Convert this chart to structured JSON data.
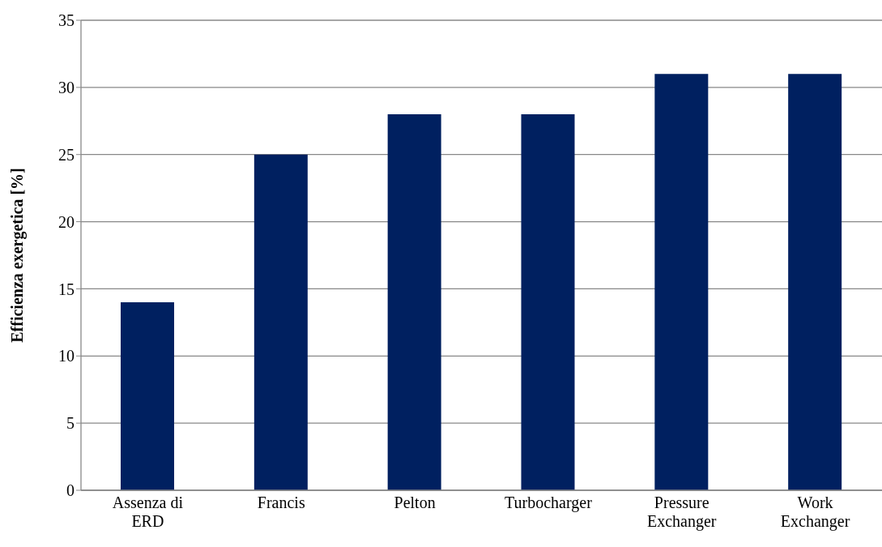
{
  "chart_data": {
    "type": "bar",
    "ylabel": "Efficienza exergetica [%]",
    "categories": [
      "Assenza di ERD",
      "Francis",
      "Pelton",
      "Turbocharger",
      "Pressure Exchanger",
      "Work Exchanger"
    ],
    "values": [
      14,
      25,
      28,
      28,
      31,
      31
    ],
    "color": "#002060",
    "ylim": [
      0,
      35
    ],
    "yticks": [
      0,
      5,
      10,
      15,
      20,
      25,
      30,
      35
    ],
    "grid": "y",
    "legend": false
  }
}
